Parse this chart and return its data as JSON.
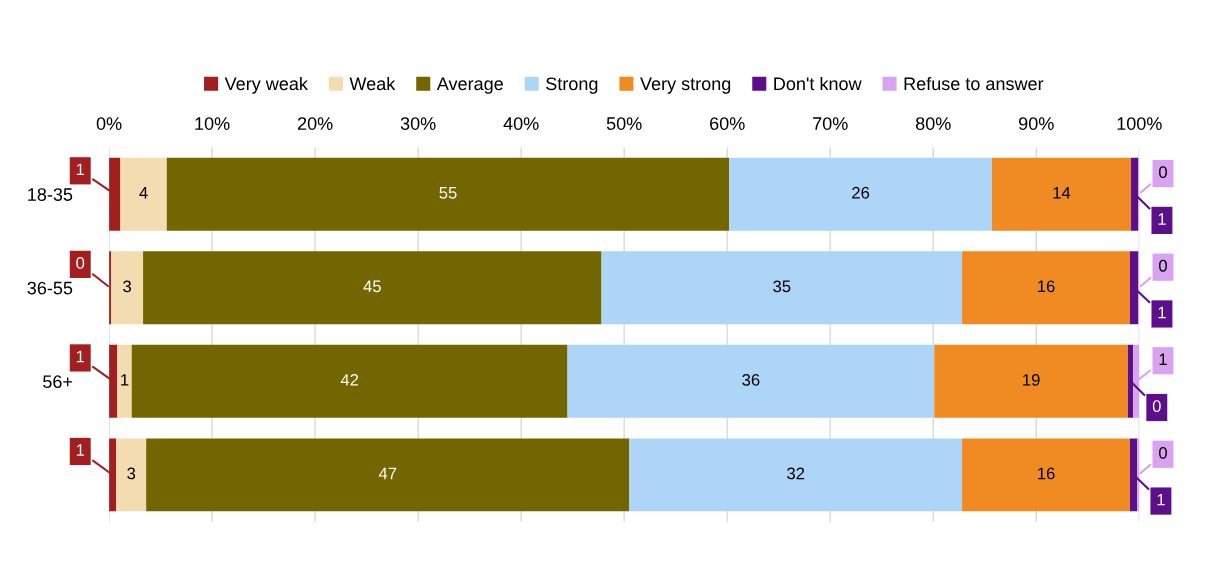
{
  "chart_data": {
    "type": "bar",
    "orientation": "horizontal",
    "stacked": true,
    "categories": [
      "18-35",
      "36-55",
      "56+",
      null
    ],
    "series": [
      {
        "name": "Very weak",
        "color": "#a31f1f",
        "values": [
          1.1,
          0.2,
          0.8,
          0.7
        ],
        "value_labels": [
          "1",
          "0",
          "1",
          "1"
        ]
      },
      {
        "name": "Weak",
        "color": "#f2dcb0",
        "values": [
          4.5,
          3.1,
          1.4,
          2.9
        ],
        "value_labels": [
          "4",
          "3",
          "1",
          "3"
        ]
      },
      {
        "name": "Average",
        "color": "#736600",
        "values": [
          54.6,
          44.5,
          42.3,
          46.9
        ],
        "value_labels": [
          "55",
          "45",
          "42",
          "47"
        ]
      },
      {
        "name": "Strong",
        "color": "#acd5f7",
        "values": [
          25.5,
          35.0,
          35.6,
          32.3
        ],
        "value_labels": [
          "26",
          "35",
          "36",
          "32"
        ]
      },
      {
        "name": "Very strong",
        "color": "#ef8b22",
        "values": [
          13.5,
          16.3,
          18.8,
          16.3
        ],
        "value_labels": [
          "14",
          "16",
          "19",
          "16"
        ]
      },
      {
        "name": "Don't know",
        "color": "#5c0f8b",
        "values": [
          0.7,
          0.8,
          0.5,
          0.7
        ],
        "value_labels": [
          "1",
          "1",
          "0",
          "1"
        ]
      },
      {
        "name": "Refuse to answer",
        "color": "#d9a3f0",
        "values": [
          0.1,
          0.1,
          0.6,
          0.2
        ],
        "value_labels": [
          "0",
          "0",
          "1",
          "0"
        ]
      }
    ],
    "xlim": [
      0,
      100
    ],
    "xticks": [
      {
        "value": 0,
        "label": "0%"
      },
      {
        "value": 10,
        "label": "10%"
      },
      {
        "value": 20,
        "label": "20%"
      },
      {
        "value": 30,
        "label": "30%"
      },
      {
        "value": 40,
        "label": "40%"
      },
      {
        "value": 50,
        "label": "50%"
      },
      {
        "value": 60,
        "label": "60%"
      },
      {
        "value": 70,
        "label": "70%"
      },
      {
        "value": 80,
        "label": "80%"
      },
      {
        "value": 90,
        "label": "90%"
      },
      {
        "value": 100,
        "label": "100%"
      }
    ],
    "grid": "x",
    "legend": "top"
  }
}
